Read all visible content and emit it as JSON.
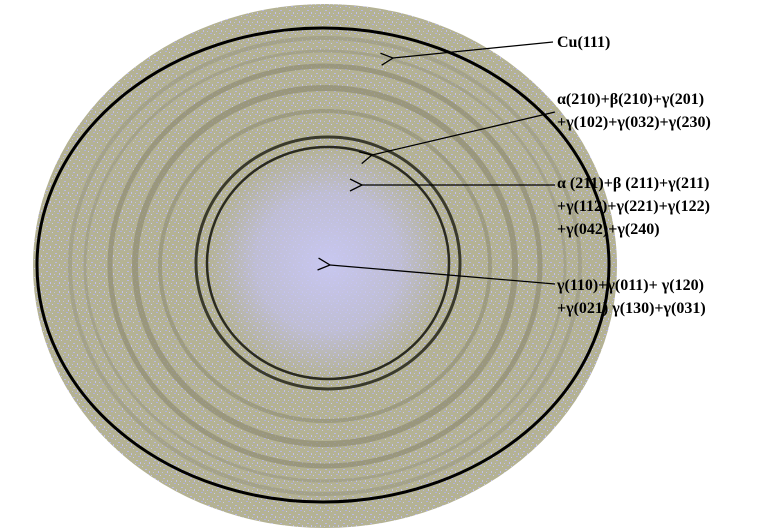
{
  "labels": [
    {
      "lines": [
        "Cu(111)"
      ]
    },
    {
      "lines": [
        "α(210)+β(210)+γ(201)",
        "+γ(102)+γ(032)+γ(230)"
      ]
    },
    {
      "lines": [
        "α (211)+β (211)+γ(211)",
        "+γ(112)+γ(221)+γ(122)",
        "+γ(042)+γ(240)"
      ]
    },
    {
      "lines": [
        "γ(110)+γ(011)+ γ(120)",
        "+γ(021) γ(130)+γ(031)"
      ]
    }
  ]
}
